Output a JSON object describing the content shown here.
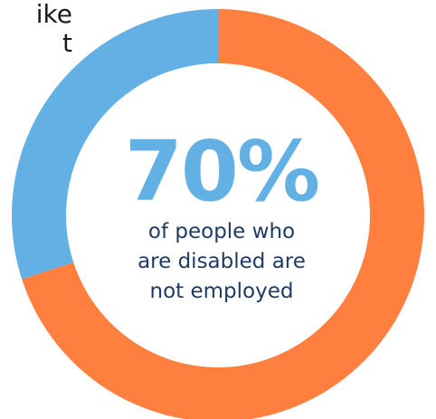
{
  "chart_data": {
    "type": "pie",
    "style": "donut",
    "slices": [
      {
        "name": "not employed",
        "value": 70,
        "color": "#ff7f3f"
      },
      {
        "name": "employed",
        "value": 30,
        "color": "#63b1e4"
      }
    ],
    "center_value": "70%",
    "center_caption": [
      "of people who",
      "are disabled are",
      "not employed"
    ]
  },
  "partial_text": [
    "ike",
    "t"
  ]
}
